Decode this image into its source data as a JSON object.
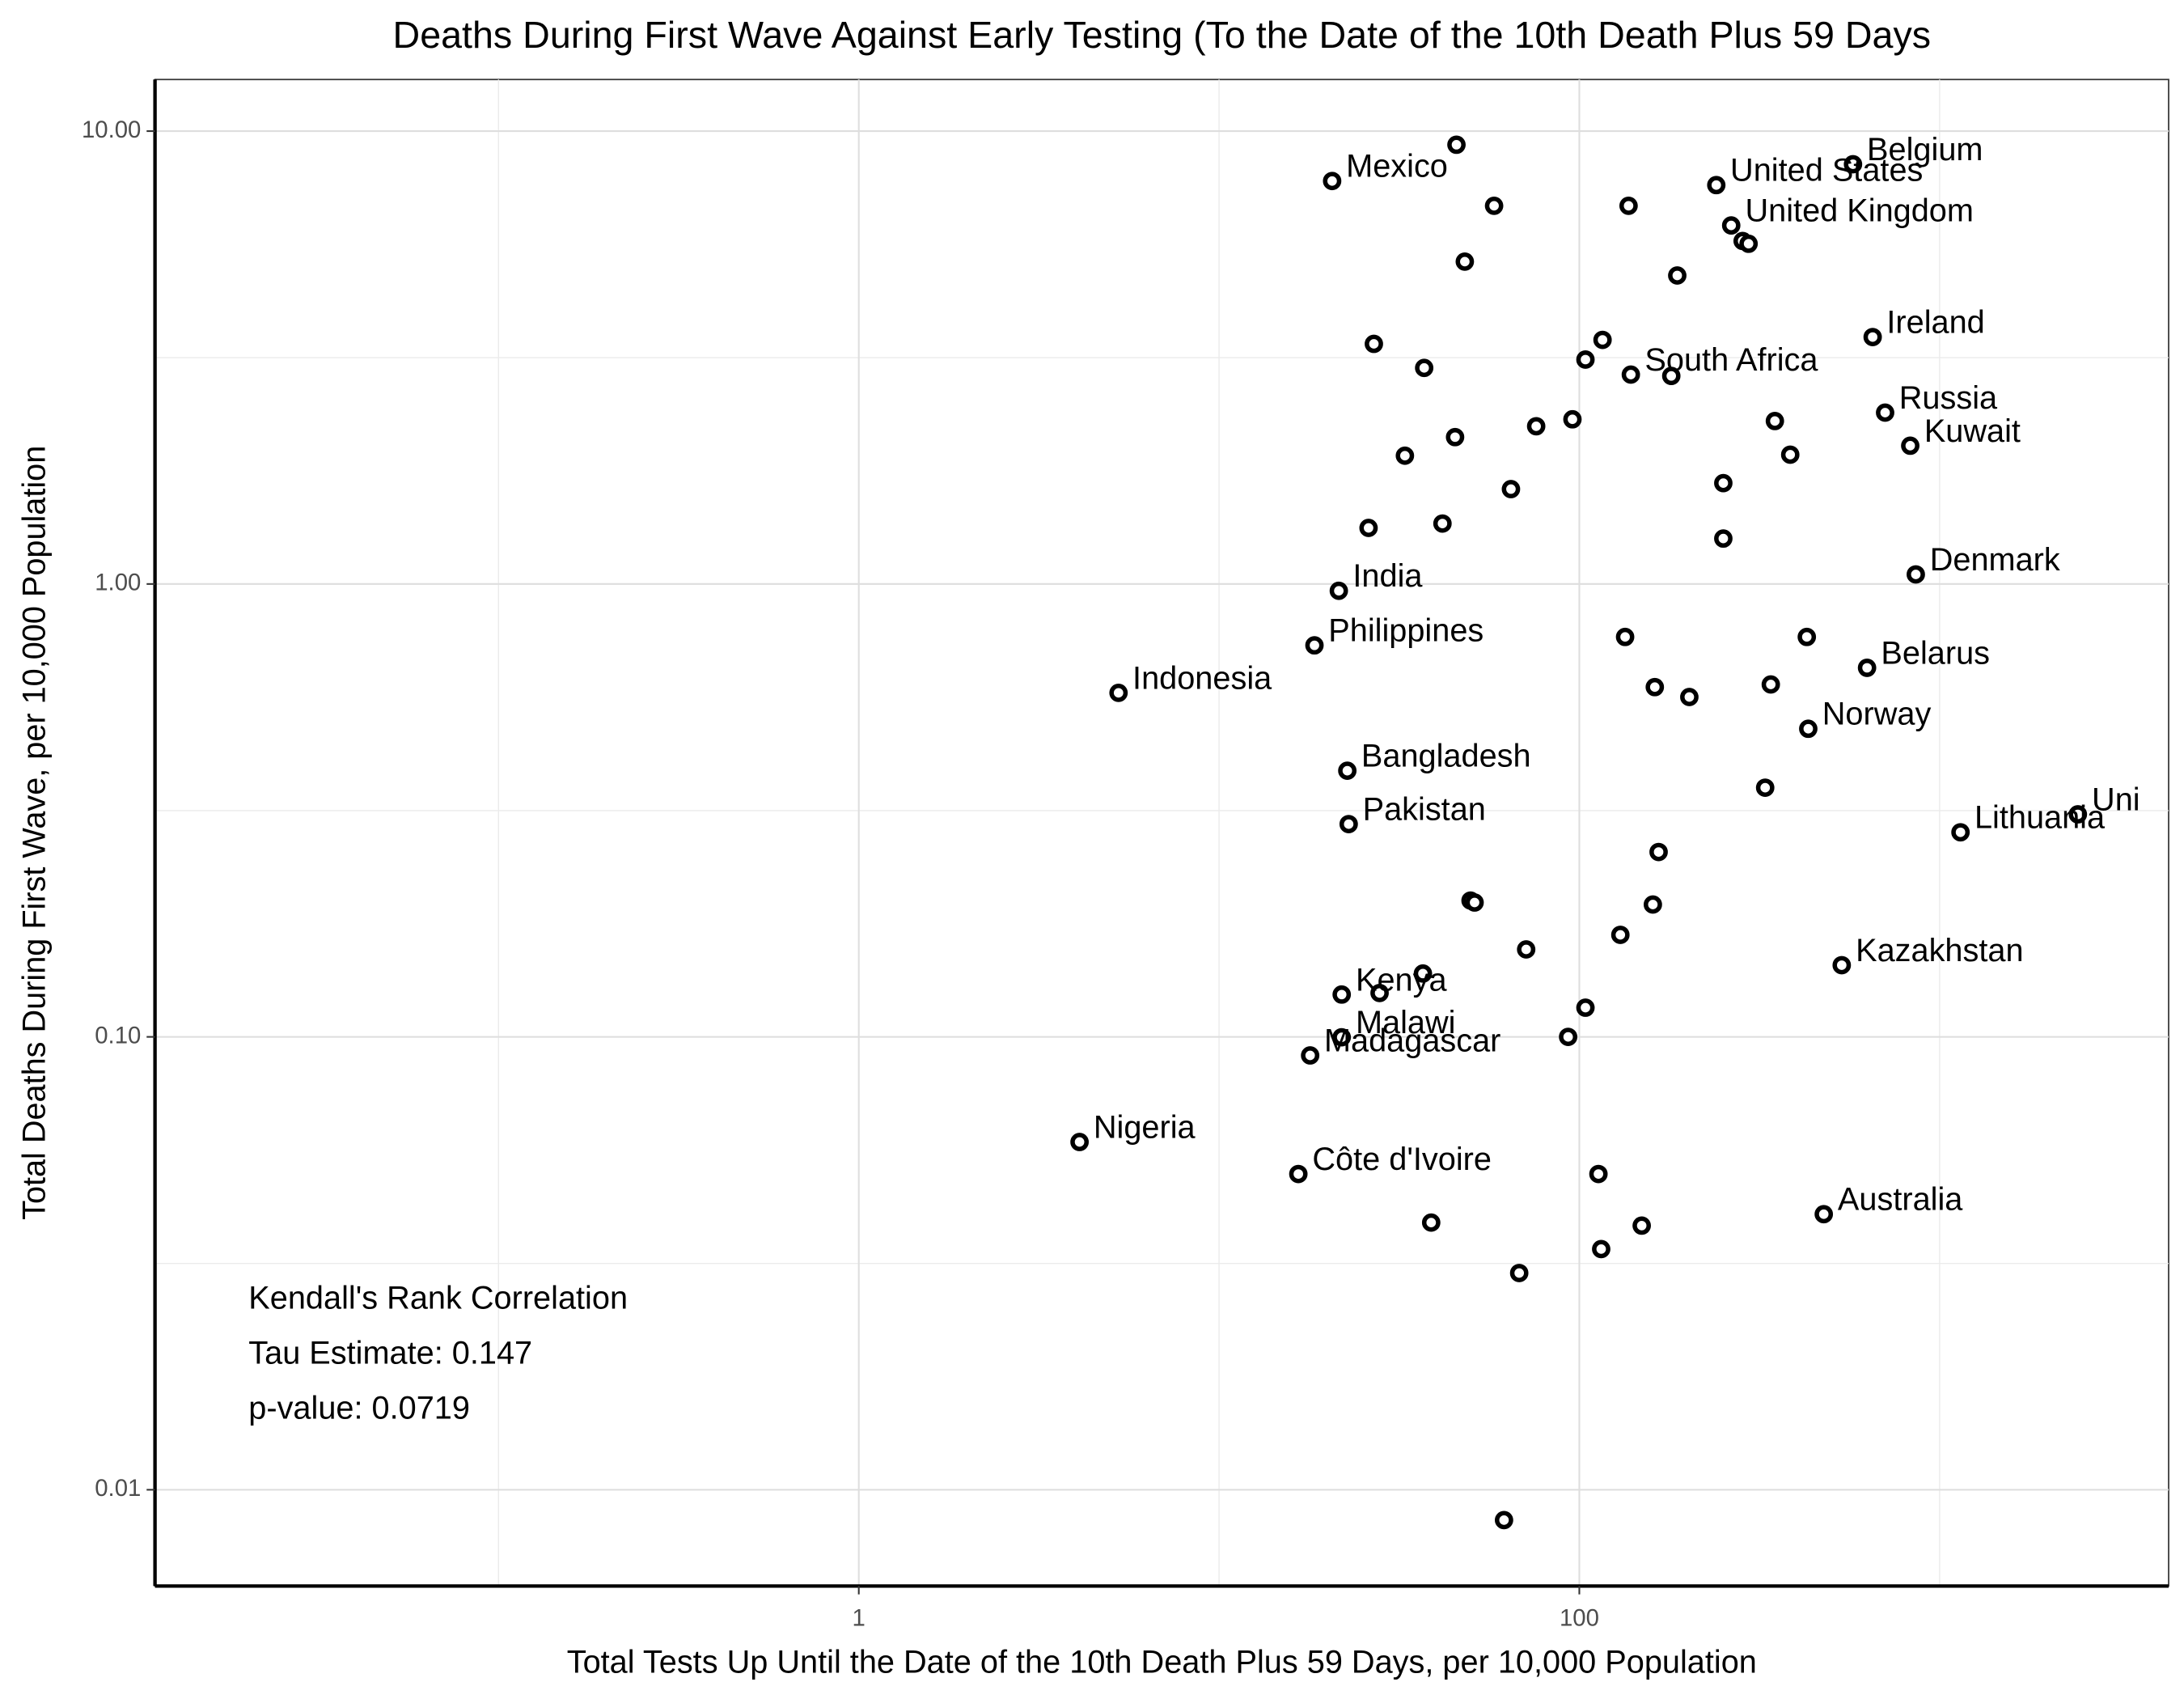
{
  "chart_data": {
    "type": "scatter",
    "title": "Deaths During First Wave Against  Early Testing (To the Date of the 10th Death Plus 59 Days",
    "x_label": "Total Tests Up Until the Date of the 10th Death Plus 59 Days, per 10,000 Population",
    "y_label": "Total Deaths During First Wave, per 10,000 Population",
    "annotation": [
      "Kendall's Rank Correlation",
      "Tau Estimate: 0.147",
      "p-value: 0.0719"
    ],
    "x_log": true,
    "y_log": true,
    "grid": true,
    "xlim": [
      0.01113,
      4323
    ],
    "ylim": [
      0.00613,
      13.0
    ],
    "xticks": [
      1,
      100
    ],
    "yticks": [
      {
        "value": 0.01,
        "label": "0.01"
      },
      {
        "value": 0.1,
        "label": "0.10"
      },
      {
        "value": 1,
        "label": "1.00"
      },
      {
        "value": 10,
        "label": "10.00"
      }
    ],
    "x_minor_grid": [
      0.1,
      10,
      1000
    ],
    "y_minor_grid": [
      0.0316,
      0.316,
      3.16
    ],
    "color": "#000000",
    "labels": [
      "Mexico",
      null,
      null,
      null,
      null,
      "United States",
      "Belgium",
      "United Kingdom",
      null,
      null,
      null,
      "Ireland",
      null,
      null,
      null,
      null,
      "South Africa",
      null,
      "Russia",
      null,
      null,
      null,
      "Kuwait",
      null,
      null,
      null,
      null,
      null,
      null,
      null,
      "Denmark",
      "India",
      "Philippines",
      null,
      null,
      "Belarus",
      "Indonesia",
      null,
      null,
      null,
      "Norway",
      "Bangladesh",
      null,
      "Pakistan",
      "Uni",
      "Lithuania",
      null,
      null,
      null,
      null,
      null,
      null,
      "Kazakhstan",
      null,
      "Kenya",
      null,
      null,
      "Malawi",
      null,
      "Madagascar",
      "Nigeria",
      "Côte d'Ivoire",
      null,
      "Australia",
      null,
      null,
      null,
      null,
      null
    ],
    "x": [
      20.6,
      45.6,
      58.0,
      48.1,
      137,
      240,
      575,
      264,
      284,
      295,
      187,
      652,
      26.9,
      116,
      104,
      37.1,
      139,
      180,
      706,
      95.7,
      75.9,
      349,
      829,
      45.2,
      32.8,
      385,
      64.6,
      251,
      26.0,
      41.7,
      859,
      21.5,
      18.4,
      134,
      428,
      629,
      5.26,
      162,
      202,
      340,
      432,
      22.7,
      328,
      22.9,
      2420,
      1143,
      166,
      49.9,
      51.2,
      160,
      130,
      71.2,
      535,
      36.8,
      21.9,
      27.9,
      104,
      21.9,
      93.1,
      17.9,
      4.1,
      16.6,
      113,
      477,
      38.8,
      149,
      115,
      68.1,
      61.8,
      251
    ],
    "y": [
      7.76,
      9.33,
      6.84,
      5.15,
      6.84,
      7.6,
      8.45,
      6.19,
      5.72,
      5.64,
      4.8,
      3.51,
      3.39,
      3.46,
      3.13,
      3.0,
      2.9,
      2.88,
      2.39,
      2.31,
      2.23,
      2.29,
      2.02,
      2.11,
      1.92,
      1.93,
      1.62,
      1.67,
      1.33,
      1.36,
      1.05,
      0.966,
      0.732,
      0.764,
      0.764,
      0.653,
      0.575,
      0.592,
      0.563,
      0.6,
      0.479,
      0.387,
      0.355,
      0.295,
      0.31,
      0.283,
      0.256,
      0.2,
      0.198,
      0.196,
      0.168,
      0.156,
      0.144,
      0.138,
      0.124,
      0.125,
      0.116,
      0.0998,
      0.1,
      0.091,
      0.0586,
      0.0498,
      0.0498,
      0.0406,
      0.0389,
      0.0383,
      0.034,
      0.0301,
      0.00857,
      1.26
    ]
  }
}
